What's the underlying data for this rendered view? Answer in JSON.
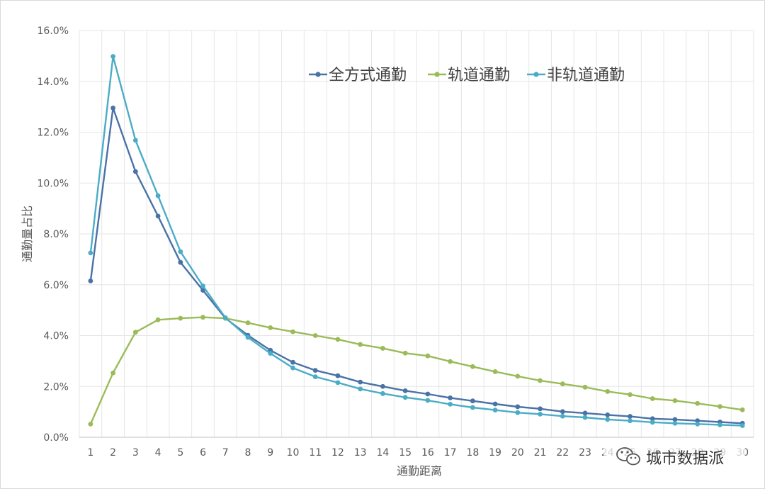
{
  "chart_data": {
    "type": "line",
    "xlabel": "通勤距离",
    "ylabel": "通勤量占比",
    "x": [
      1,
      2,
      3,
      4,
      5,
      6,
      7,
      8,
      9,
      10,
      11,
      12,
      13,
      14,
      15,
      16,
      17,
      18,
      19,
      20,
      21,
      22,
      23,
      24,
      25,
      26,
      27,
      28,
      29,
      30
    ],
    "x_tick_labels": [
      "1",
      "2",
      "3",
      "4",
      "5",
      "6",
      "7",
      "8",
      "9",
      "10",
      "11",
      "12",
      "13",
      "14",
      "15",
      "16",
      "17",
      "18",
      "19",
      "20",
      "21",
      "22",
      "23",
      "24",
      "25",
      "26",
      "27",
      "28",
      "29",
      "30"
    ],
    "ylim": [
      0,
      16
    ],
    "y_ticks": [
      0,
      2,
      4,
      6,
      8,
      10,
      12,
      14,
      16
    ],
    "y_tick_labels": [
      "0.0%",
      "2.0%",
      "4.0%",
      "6.0%",
      "8.0%",
      "10.0%",
      "12.0%",
      "14.0%",
      "16.0%"
    ],
    "grid": true,
    "legend_position": "top-center",
    "series": [
      {
        "name": "全方式通勤",
        "color": "#4a72a6",
        "values": [
          6.15,
          12.95,
          10.45,
          8.7,
          6.88,
          5.78,
          4.68,
          4.01,
          3.42,
          2.95,
          2.63,
          2.42,
          2.17,
          2.0,
          1.83,
          1.7,
          1.55,
          1.43,
          1.31,
          1.2,
          1.12,
          1.01,
          0.95,
          0.88,
          0.82,
          0.73,
          0.7,
          0.65,
          0.6,
          0.55
        ]
      },
      {
        "name": "轨道通勤",
        "color": "#9bbb59",
        "values": [
          0.52,
          2.53,
          4.13,
          4.62,
          4.68,
          4.72,
          4.68,
          4.5,
          4.31,
          4.15,
          4.0,
          3.85,
          3.65,
          3.5,
          3.31,
          3.2,
          2.98,
          2.78,
          2.58,
          2.4,
          2.23,
          2.1,
          1.97,
          1.8,
          1.68,
          1.52,
          1.44,
          1.33,
          1.21,
          1.08
        ]
      },
      {
        "name": "非轨道通勤",
        "color": "#4bacc6",
        "values": [
          7.25,
          14.98,
          11.68,
          9.5,
          7.3,
          5.95,
          4.7,
          3.93,
          3.3,
          2.73,
          2.38,
          2.15,
          1.9,
          1.72,
          1.57,
          1.45,
          1.3,
          1.17,
          1.07,
          0.97,
          0.91,
          0.83,
          0.78,
          0.7,
          0.65,
          0.59,
          0.55,
          0.52,
          0.49,
          0.46
        ]
      }
    ],
    "watermark": "城市数据派"
  }
}
